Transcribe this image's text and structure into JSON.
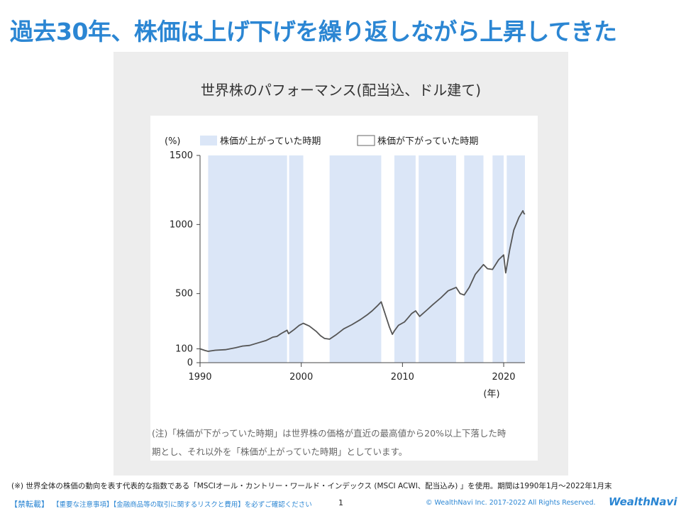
{
  "page": {
    "title": "過去30年、株価は上げ下げを繰り返しながら上昇してきた",
    "note_line1": "(注)「株価が下がっていた時期」は世界株の価格が直近の最高値から20%以上下落した時",
    "note_line2": "期とし、それ以外を「株価が上がっていた時期」としています。",
    "footnote": "(※) 世界全体の株価の動向を表す代表的な指数である「MSCIオール・カントリー・ワールド・インデックス (MSCI ACWI、配当込み) 」を使用。期間は1990年1月〜2022年1月末",
    "footer": {
      "forbid_label": "【禁転載】",
      "notice_text": "【重要な注意事項】【金融商品等の取引に関するリスクと費用】を必ずご確認ください",
      "page_number": "1",
      "copyright": "© WealthNavi Inc. 2017-2022 All Rights Reserved.",
      "logo_text": "WealthNavi"
    }
  },
  "colors": {
    "accent": "#2b86d3",
    "up_period": "#dbe6f7",
    "line": "#555555"
  },
  "chart_data": {
    "type": "line",
    "title": "世界株のパフォーマンス(配当込、ドル建て)",
    "ylabel": "(%)",
    "xlabel": "(年)",
    "ylim": [
      0,
      1500
    ],
    "xlim": [
      1990,
      2022.1
    ],
    "yticks": [
      0,
      100,
      500,
      1000,
      1500
    ],
    "xticks": [
      1990,
      2000,
      2010,
      2020
    ],
    "grid": false,
    "legend_position": "top",
    "legend": [
      {
        "label": "株価が上がっていた時期",
        "color": "#dbe6f7"
      },
      {
        "label": "株価が下がっていた時期",
        "color": "#ffffff"
      }
    ],
    "up_periods": [
      [
        1990.8,
        1998.6
      ],
      [
        1998.8,
        2000.2
      ],
      [
        2002.8,
        2007.9
      ],
      [
        2009.2,
        2011.3
      ],
      [
        2011.6,
        2015.3
      ],
      [
        2016.1,
        2018.0
      ],
      [
        2018.9,
        2020.0
      ],
      [
        2020.3,
        2022.1
      ]
    ],
    "series": [
      {
        "x": [
          1990.0,
          1990.5,
          1990.8,
          1991.5,
          1992.5,
          1993.5,
          1994.2,
          1994.9,
          1995.8,
          1996.5,
          1997.2,
          1997.6,
          1998.0,
          1998.6,
          1998.75,
          1999.3,
          1999.8,
          2000.2,
          2000.8,
          2001.5,
          2001.9,
          2002.3,
          2002.8,
          2003.5,
          2004.2,
          2005.0,
          2005.8,
          2006.5,
          2007.0,
          2007.5,
          2007.9,
          2008.3,
          2008.7,
          2009.0,
          2009.2,
          2009.6,
          2010.2,
          2010.5,
          2010.9,
          2011.3,
          2011.7,
          2012.4,
          2013.0,
          2013.8,
          2014.5,
          2015.3,
          2015.7,
          2016.1,
          2016.6,
          2017.2,
          2018.0,
          2018.4,
          2018.9,
          2019.5,
          2020.0,
          2020.2,
          2020.6,
          2021.0,
          2021.5,
          2021.9,
          2022.0,
          2022.1
        ],
        "y": [
          100,
          88,
          82,
          90,
          94,
          108,
          120,
          125,
          145,
          160,
          185,
          190,
          210,
          235,
          210,
          240,
          270,
          285,
          265,
          225,
          195,
          175,
          170,
          205,
          245,
          275,
          310,
          345,
          375,
          410,
          440,
          350,
          260,
          205,
          230,
          270,
          295,
          320,
          355,
          375,
          335,
          380,
          420,
          470,
          520,
          545,
          500,
          490,
          545,
          640,
          710,
          680,
          675,
          745,
          780,
          650,
          820,
          960,
          1050,
          1100,
          1080,
          1075
        ]
      }
    ]
  }
}
